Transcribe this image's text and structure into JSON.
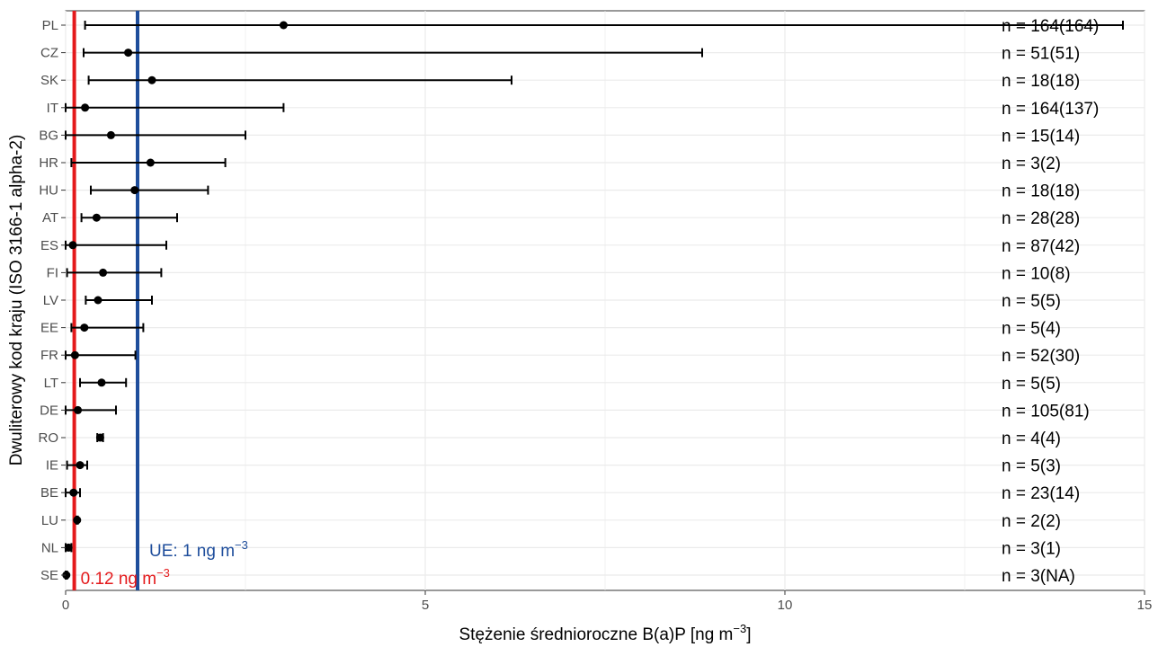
{
  "chart_data": {
    "type": "scatter",
    "subtype": "point-range",
    "xlabel_parts": {
      "main": "Stężenie średnioroczne B(a)P [ng m",
      "sup": "−3",
      "tail": "]"
    },
    "ylabel": "Dwuliterowy kod kraju (ISO 3166-1 alpha-2)",
    "xlim": [
      0,
      15
    ],
    "x_ticks": [
      "0",
      "5",
      "10",
      "15"
    ],
    "grid": true,
    "legend": "none",
    "reference_lines": [
      {
        "value": 0.12,
        "color": "#e41a1c",
        "label": "0.12 ng m",
        "sup": "−3"
      },
      {
        "value": 1,
        "color": "#1f4e9c",
        "label": "UE: 1 ng m",
        "sup": "−3"
      }
    ],
    "rows": [
      {
        "country": "PL",
        "mean": 3.03,
        "min": 0.27,
        "max": 14.7,
        "n_label": "n = 164(164)"
      },
      {
        "country": "CZ",
        "mean": 0.87,
        "min": 0.25,
        "max": 8.85,
        "n_label": "n = 51(51)"
      },
      {
        "country": "SK",
        "mean": 1.2,
        "min": 0.32,
        "max": 6.2,
        "n_label": "n = 18(18)"
      },
      {
        "country": "IT",
        "mean": 0.27,
        "min": 0.0,
        "max": 3.03,
        "n_label": "n = 164(137)"
      },
      {
        "country": "BG",
        "mean": 0.63,
        "min": 0.0,
        "max": 2.5,
        "n_label": "n = 15(14)"
      },
      {
        "country": "HR",
        "mean": 1.18,
        "min": 0.08,
        "max": 2.22,
        "n_label": "n = 3(2)"
      },
      {
        "country": "HU",
        "mean": 0.96,
        "min": 0.35,
        "max": 1.98,
        "n_label": "n = 18(18)"
      },
      {
        "country": "AT",
        "mean": 0.43,
        "min": 0.22,
        "max": 1.55,
        "n_label": "n = 28(28)"
      },
      {
        "country": "ES",
        "mean": 0.1,
        "min": 0.0,
        "max": 1.4,
        "n_label": "n = 87(42)"
      },
      {
        "country": "FI",
        "mean": 0.52,
        "min": 0.02,
        "max": 1.33,
        "n_label": "n = 10(8)"
      },
      {
        "country": "LV",
        "mean": 0.45,
        "min": 0.28,
        "max": 1.2,
        "n_label": "n = 5(5)"
      },
      {
        "country": "EE",
        "mean": 0.26,
        "min": 0.08,
        "max": 1.08,
        "n_label": "n = 5(4)"
      },
      {
        "country": "FR",
        "mean": 0.13,
        "min": 0.0,
        "max": 0.97,
        "n_label": "n = 52(30)"
      },
      {
        "country": "LT",
        "mean": 0.5,
        "min": 0.2,
        "max": 0.84,
        "n_label": "n = 5(5)"
      },
      {
        "country": "DE",
        "mean": 0.17,
        "min": 0.0,
        "max": 0.7,
        "n_label": "n = 105(81)"
      },
      {
        "country": "RO",
        "mean": 0.48,
        "min": 0.44,
        "max": 0.52,
        "n_label": "n = 4(4)"
      },
      {
        "country": "IE",
        "mean": 0.2,
        "min": 0.02,
        "max": 0.3,
        "n_label": "n = 5(3)"
      },
      {
        "country": "BE",
        "mean": 0.11,
        "min": 0.0,
        "max": 0.2,
        "n_label": "n = 23(14)"
      },
      {
        "country": "LU",
        "mean": 0.16,
        "min": 0.15,
        "max": 0.17,
        "n_label": "n = 2(2)"
      },
      {
        "country": "NL",
        "mean": 0.04,
        "min": 0.0,
        "max": 0.08,
        "n_label": "n = 3(1)"
      },
      {
        "country": "SE",
        "mean": 0.01,
        "min": 0.0,
        "max": 0.02,
        "n_label": "n = 3(NA)"
      }
    ]
  }
}
